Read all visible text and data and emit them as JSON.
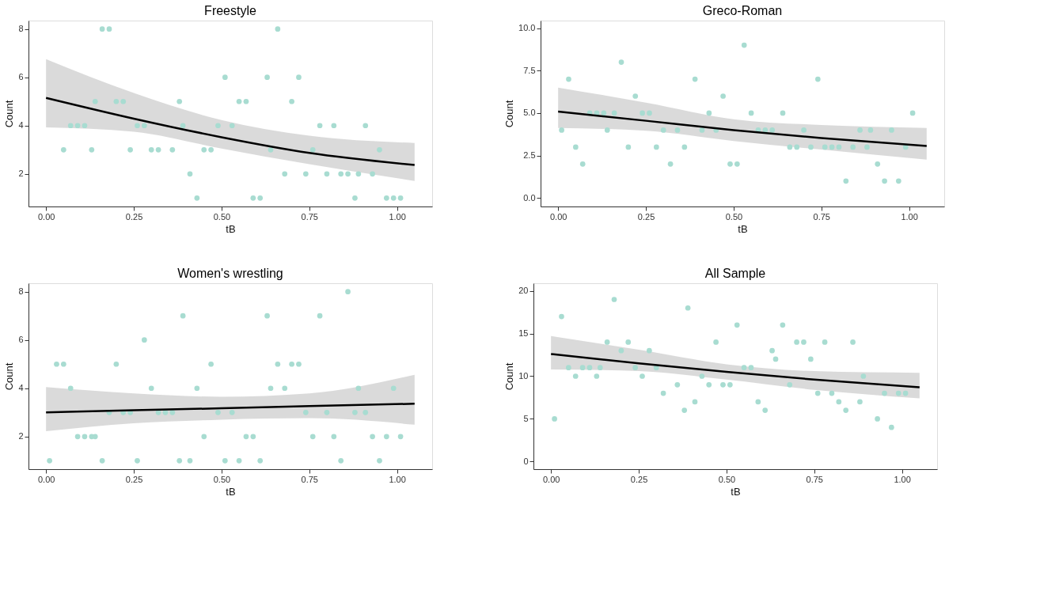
{
  "chart_data": [
    {
      "type": "scatter",
      "title": "Freestyle",
      "xlabel": "tB",
      "ylabel": "Count",
      "marker": "circle",
      "xlim": [
        -0.05,
        1.1
      ],
      "ylim": [
        0.65,
        8.35
      ],
      "xticks": [
        {
          "value": 0,
          "label": "0.00"
        },
        {
          "value": 0.25,
          "label": "0.25"
        },
        {
          "value": 0.5,
          "label": "0.50"
        },
        {
          "value": 0.75,
          "label": "0.75"
        },
        {
          "value": 1,
          "label": "1.00"
        }
      ],
      "yticks": [
        2,
        4,
        6,
        8
      ],
      "series": [
        {
          "color": "#a8dcd1",
          "x": [
            0.16,
            0.18,
            0.66,
            0.51,
            0.63,
            0.72,
            0.14,
            0.2,
            0.22,
            0.38,
            0.55,
            0.57,
            0.7,
            0.07,
            0.09,
            0.11,
            0.26,
            0.28,
            0.39,
            0.49,
            0.53,
            0.78,
            0.82,
            0.91,
            0.05,
            0.13,
            0.24,
            0.3,
            0.32,
            0.36,
            0.45,
            0.47,
            0.64,
            0.76,
            0.95,
            0.41,
            0.68,
            0.74,
            0.8,
            0.84,
            0.86,
            0.89,
            0.93,
            0.43,
            0.59,
            0.61,
            0.88,
            0.97,
            0.99,
            1.01
          ],
          "values": [
            8,
            8,
            8,
            6,
            6,
            6,
            5,
            5,
            5,
            5,
            5,
            5,
            5,
            4,
            4,
            4,
            4,
            4,
            4,
            4,
            4,
            4,
            4,
            4,
            3,
            3,
            3,
            3,
            3,
            3,
            3,
            3,
            3,
            3,
            3,
            2,
            2,
            2,
            2,
            2,
            2,
            2,
            2,
            1,
            1,
            1,
            1,
            1,
            1,
            1
          ]
        },
        {
          "type": "line",
          "marker": "none",
          "color": "#000000",
          "x": [
            0,
            0.25,
            0.5,
            0.75,
            1.05
          ],
          "values": [
            5.15,
            4.29,
            3.52,
            2.87,
            2.37
          ],
          "lower": [
            3.93,
            3.75,
            3.05,
            2.4,
            1.71
          ],
          "upper": [
            6.75,
            5.35,
            4.23,
            3.58,
            3.28
          ]
        }
      ]
    },
    {
      "type": "scatter",
      "title": "Greco-Roman",
      "xlabel": "tB",
      "ylabel": "Count",
      "marker": "circle",
      "xlim": [
        -0.05,
        1.1
      ],
      "ylim": [
        -0.5,
        10.45
      ],
      "xticks": [
        {
          "value": 0,
          "label": "0.00"
        },
        {
          "value": 0.25,
          "label": "0.25"
        },
        {
          "value": 0.5,
          "label": "0.50"
        },
        {
          "value": 0.75,
          "label": "0.75"
        },
        {
          "value": 1,
          "label": "1.00"
        }
      ],
      "yticks": [
        {
          "value": 0,
          "label": "0.0"
        },
        2.5,
        {
          "value": 5,
          "label": "5.0"
        },
        7.5,
        {
          "value": 10,
          "label": "10.0"
        }
      ],
      "series": [
        {
          "color": "#a8dcd1",
          "x": [
            0.53,
            0.18,
            0.03,
            0.39,
            0.74,
            0.22,
            0.47,
            0.09,
            0.11,
            0.13,
            0.16,
            0.24,
            0.26,
            0.43,
            0.55,
            0.64,
            1.01,
            0.01,
            0.14,
            0.3,
            0.34,
            0.41,
            0.45,
            0.57,
            0.59,
            0.61,
            0.7,
            0.86,
            0.89,
            0.95,
            0.05,
            0.2,
            0.28,
            0.36,
            0.66,
            0.68,
            0.72,
            0.76,
            0.78,
            0.8,
            0.84,
            0.88,
            0.99,
            0.07,
            0.32,
            0.49,
            0.51,
            0.91,
            0.82,
            0.93,
            0.97
          ],
          "values": [
            9,
            8,
            7,
            7,
            7,
            6,
            6,
            5,
            5,
            5,
            5,
            5,
            5,
            5,
            5,
            5,
            5,
            4,
            4,
            4,
            4,
            4,
            4,
            4,
            4,
            4,
            4,
            4,
            4,
            4,
            3,
            3,
            3,
            3,
            3,
            3,
            3,
            3,
            3,
            3,
            3,
            3,
            3,
            2,
            2,
            2,
            2,
            2,
            1,
            1,
            1
          ]
        },
        {
          "type": "line",
          "marker": "none",
          "color": "#000000",
          "x": [
            0,
            0.25,
            0.5,
            0.75,
            1.05
          ],
          "values": [
            5.09,
            4.55,
            4.0,
            3.53,
            3.06
          ],
          "lower": [
            4.13,
            3.96,
            3.36,
            2.85,
            2.26
          ],
          "upper": [
            6.5,
            5.62,
            4.64,
            4.3,
            4.13
          ]
        }
      ]
    },
    {
      "type": "scatter",
      "title": "Women's wrestling",
      "xlabel": "tB",
      "ylabel": "Count",
      "marker": "circle",
      "xlim": [
        -0.05,
        1.1
      ],
      "ylim": [
        0.65,
        8.35
      ],
      "xticks": [
        {
          "value": 0,
          "label": "0.00"
        },
        {
          "value": 0.25,
          "label": "0.25"
        },
        {
          "value": 0.5,
          "label": "0.50"
        },
        {
          "value": 0.75,
          "label": "0.75"
        },
        {
          "value": 1,
          "label": "1.00"
        }
      ],
      "yticks": [
        2,
        4,
        6,
        8
      ],
      "series": [
        {
          "color": "#a8dcd1",
          "x": [
            0.86,
            0.39,
            0.63,
            0.78,
            0.28,
            0.03,
            0.05,
            0.2,
            0.47,
            0.66,
            0.7,
            0.72,
            0.07,
            0.3,
            0.43,
            0.64,
            0.68,
            0.89,
            0.99,
            0.18,
            0.22,
            0.24,
            0.32,
            0.34,
            0.36,
            0.49,
            0.53,
            0.74,
            0.8,
            0.88,
            0.91,
            0.09,
            0.11,
            0.13,
            0.14,
            0.45,
            0.57,
            0.59,
            0.76,
            0.82,
            0.93,
            0.97,
            1.01,
            0.01,
            0.16,
            0.26,
            0.38,
            0.41,
            0.51,
            0.55,
            0.61,
            0.84,
            0.95
          ],
          "values": [
            8,
            7,
            7,
            7,
            6,
            5,
            5,
            5,
            5,
            5,
            5,
            5,
            4,
            4,
            4,
            4,
            4,
            4,
            4,
            3,
            3,
            3,
            3,
            3,
            3,
            3,
            3,
            3,
            3,
            3,
            3,
            2,
            2,
            2,
            2,
            2,
            2,
            2,
            2,
            2,
            2,
            2,
            2,
            1,
            1,
            1,
            1,
            1,
            1,
            1,
            1,
            1,
            1
          ]
        },
        {
          "type": "line",
          "marker": "none",
          "color": "#000000",
          "x": [
            0,
            0.25,
            0.5,
            0.75,
            1.05
          ],
          "values": [
            3.0,
            3.09,
            3.17,
            3.26,
            3.36
          ],
          "lower": [
            2.22,
            2.55,
            2.7,
            2.76,
            2.49
          ],
          "upper": [
            4.05,
            3.79,
            3.65,
            3.79,
            4.56
          ]
        }
      ]
    },
    {
      "type": "scatter",
      "title": "All Sample",
      "xlabel": "tB",
      "ylabel": "Count",
      "marker": "circle",
      "xlim": [
        -0.05,
        1.1
      ],
      "ylim": [
        -0.9,
        20.9
      ],
      "xticks": [
        {
          "value": 0,
          "label": "0.00"
        },
        {
          "value": 0.25,
          "label": "0.25"
        },
        {
          "value": 0.5,
          "label": "0.50"
        },
        {
          "value": 0.75,
          "label": "0.75"
        },
        {
          "value": 1,
          "label": "1.00"
        }
      ],
      "yticks": [
        0,
        5,
        10,
        15,
        20
      ],
      "series": [
        {
          "color": "#a8dcd1",
          "x": [
            0.18,
            0.39,
            0.03,
            0.53,
            0.66,
            0.16,
            0.22,
            0.47,
            0.7,
            0.72,
            0.78,
            0.86,
            0.2,
            0.28,
            0.63,
            0.64,
            0.74,
            0.05,
            0.09,
            0.11,
            0.14,
            0.24,
            0.3,
            0.55,
            0.57,
            0.07,
            0.13,
            0.26,
            0.43,
            0.89,
            0.36,
            0.45,
            0.49,
            0.51,
            0.68,
            0.32,
            0.76,
            0.8,
            0.95,
            0.99,
            1.01,
            0.41,
            0.59,
            0.82,
            0.88,
            0.38,
            0.61,
            0.84,
            0.01,
            0.93,
            0.97
          ],
          "values": [
            19,
            18,
            17,
            16,
            16,
            14,
            14,
            14,
            14,
            14,
            14,
            14,
            13,
            13,
            13,
            12,
            12,
            11,
            11,
            11,
            11,
            11,
            11,
            11,
            11,
            10,
            10,
            10,
            10,
            10,
            9,
            9,
            9,
            9,
            9,
            8,
            8,
            8,
            8,
            8,
            8,
            7,
            7,
            7,
            7,
            6,
            6,
            6,
            5,
            5,
            4
          ]
        },
        {
          "type": "line",
          "marker": "none",
          "color": "#000000",
          "x": [
            0,
            0.25,
            0.5,
            0.75,
            1.05
          ],
          "values": [
            12.6,
            11.5,
            10.5,
            9.6,
            8.7
          ],
          "lower": [
            10.8,
            10.6,
            9.6,
            8.4,
            7.4
          ],
          "upper": [
            14.7,
            13.1,
            11.4,
            10.6,
            10.4
          ]
        }
      ]
    }
  ]
}
